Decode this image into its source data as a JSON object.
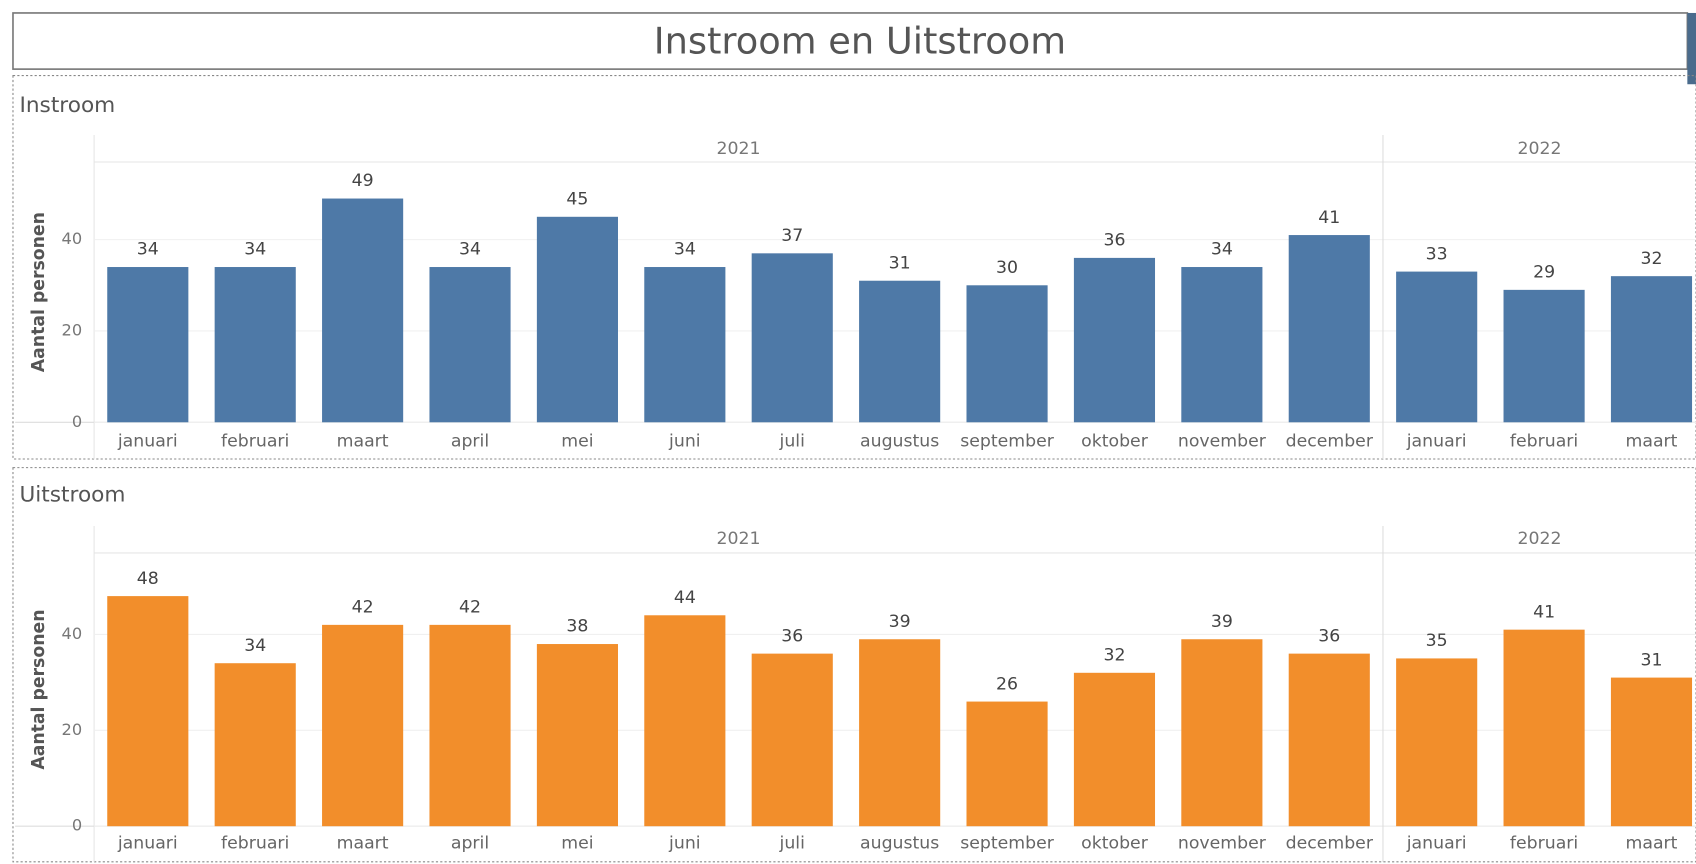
{
  "title": "Instroom en Uitstroom",
  "chart_data": [
    {
      "type": "bar",
      "title": "Instroom",
      "ylabel": "Aantal personen",
      "color": "#4e79a7",
      "groups": [
        {
          "label": "2021",
          "categories": [
            "januari",
            "februari",
            "maart",
            "april",
            "mei",
            "juni",
            "juli",
            "augustus",
            "september",
            "oktober",
            "november",
            "december"
          ]
        },
        {
          "label": "2022",
          "categories": [
            "januari",
            "februari",
            "maart"
          ]
        }
      ],
      "values": [
        34,
        34,
        49,
        34,
        45,
        34,
        37,
        31,
        30,
        36,
        34,
        41,
        33,
        29,
        32
      ],
      "ylim": [
        0,
        57
      ],
      "yticks": [
        0,
        20,
        40
      ],
      "grid": true
    },
    {
      "type": "bar",
      "title": "Uitstroom",
      "ylabel": "Aantal personen",
      "color": "#f28e2b",
      "groups": [
        {
          "label": "2021",
          "categories": [
            "januari",
            "februari",
            "maart",
            "april",
            "mei",
            "juni",
            "juli",
            "augustus",
            "september",
            "oktober",
            "november",
            "december"
          ]
        },
        {
          "label": "2022",
          "categories": [
            "januari",
            "februari",
            "maart"
          ]
        }
      ],
      "values": [
        48,
        34,
        42,
        42,
        38,
        44,
        36,
        39,
        26,
        32,
        39,
        36,
        35,
        41,
        31
      ],
      "ylim": [
        0,
        57
      ],
      "yticks": [
        0,
        20,
        40
      ],
      "grid": true
    }
  ]
}
